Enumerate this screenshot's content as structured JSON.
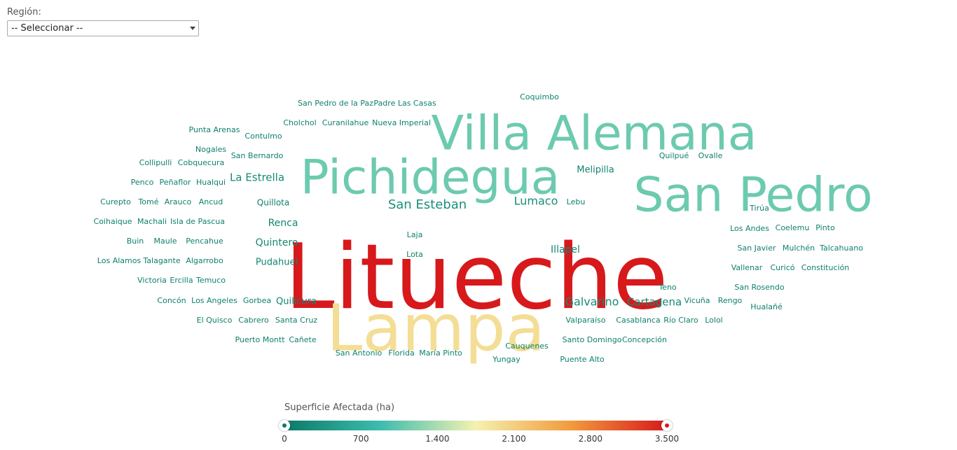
{
  "filter": {
    "label": "Región:",
    "selected": "-- Seleccionar --"
  },
  "legend": {
    "title": "Superficie Afectada (ha)",
    "min": 0,
    "max": 3500,
    "ticks": [
      "0",
      "700",
      "1.400",
      "2.100",
      "2.800",
      "3.500"
    ],
    "colors": [
      "#0a7a66",
      "#3dbcaf",
      "#f4f2b0",
      "#f29a3c",
      "#d7191c"
    ]
  },
  "chart_data": {
    "type": "wordcloud",
    "title": "",
    "value_label": "Superficie Afectada (ha)",
    "words": [
      {
        "text": "Litueche",
        "value": 3500
      },
      {
        "text": "Lampa",
        "value": 1950
      },
      {
        "text": "Pichidegua",
        "value": 1100
      },
      {
        "text": "San Pedro",
        "value": 1100
      },
      {
        "text": "Villa Alemana",
        "value": 1100
      },
      {
        "text": "San Esteban",
        "value": 280
      },
      {
        "text": "Lumaco",
        "value": 240
      },
      {
        "text": "Galvarino",
        "value": 220
      },
      {
        "text": "La Estrella",
        "value": 200
      },
      {
        "text": "Cartagena",
        "value": 180
      },
      {
        "text": "Quintero",
        "value": 170
      },
      {
        "text": "Renca",
        "value": 160
      },
      {
        "text": "Illapel",
        "value": 150
      },
      {
        "text": "Quilicura",
        "value": 140
      },
      {
        "text": "Pudahuel",
        "value": 140
      },
      {
        "text": "Melipilla",
        "value": 130
      },
      {
        "text": "Quillota",
        "value": 110
      },
      {
        "text": "Coquimbo",
        "value": 80
      },
      {
        "text": "San Pedro de la Paz",
        "value": 80
      },
      {
        "text": "Padre Las Casas",
        "value": 80
      },
      {
        "text": "Cholchol",
        "value": 80
      },
      {
        "text": "Curanilahue",
        "value": 80
      },
      {
        "text": "Nueva Imperial",
        "value": 80
      },
      {
        "text": "Punta Arenas",
        "value": 80
      },
      {
        "text": "Contulmo",
        "value": 80
      },
      {
        "text": "Nogales",
        "value": 80
      },
      {
        "text": "San Bernardo",
        "value": 80
      },
      {
        "text": "Collipulli",
        "value": 80
      },
      {
        "text": "Cobquecura",
        "value": 80
      },
      {
        "text": "Quilpué",
        "value": 80
      },
      {
        "text": "Ovalle",
        "value": 80
      },
      {
        "text": "Penco",
        "value": 80
      },
      {
        "text": "Peñaflor",
        "value": 80
      },
      {
        "text": "Hualqui",
        "value": 80
      },
      {
        "text": "Curepto",
        "value": 80
      },
      {
        "text": "Tomé",
        "value": 80
      },
      {
        "text": "Arauco",
        "value": 80
      },
      {
        "text": "Ancud",
        "value": 80
      },
      {
        "text": "Lebu",
        "value": 80
      },
      {
        "text": "Tirúa",
        "value": 80
      },
      {
        "text": "Coihaique",
        "value": 80
      },
      {
        "text": "Machali",
        "value": 80
      },
      {
        "text": "Isla de Pascua",
        "value": 80
      },
      {
        "text": "Los Andes",
        "value": 80
      },
      {
        "text": "Coelemu",
        "value": 80
      },
      {
        "text": "Pinto",
        "value": 80
      },
      {
        "text": "Laja",
        "value": 80
      },
      {
        "text": "Buin",
        "value": 80
      },
      {
        "text": "Maule",
        "value": 80
      },
      {
        "text": "Pencahue",
        "value": 80
      },
      {
        "text": "San Javier",
        "value": 80
      },
      {
        "text": "Mulchén",
        "value": 80
      },
      {
        "text": "Talcahuano",
        "value": 80
      },
      {
        "text": "Lota",
        "value": 80
      },
      {
        "text": "Los Alamos",
        "value": 80
      },
      {
        "text": "Talagante",
        "value": 80
      },
      {
        "text": "Algarrobo",
        "value": 80
      },
      {
        "text": "Vallenar",
        "value": 80
      },
      {
        "text": "Curicó",
        "value": 80
      },
      {
        "text": "Constitución",
        "value": 80
      },
      {
        "text": "Victoria",
        "value": 80
      },
      {
        "text": "Ercilla",
        "value": 80
      },
      {
        "text": "Temuco",
        "value": 80
      },
      {
        "text": "Teno",
        "value": 80
      },
      {
        "text": "San Rosendo",
        "value": 80
      },
      {
        "text": "Concón",
        "value": 80
      },
      {
        "text": "Los Angeles",
        "value": 80
      },
      {
        "text": "Gorbea",
        "value": 80
      },
      {
        "text": "Vicuña",
        "value": 80
      },
      {
        "text": "Rengo",
        "value": 80
      },
      {
        "text": "Hualañé",
        "value": 80
      },
      {
        "text": "El Quisco",
        "value": 80
      },
      {
        "text": "Cabrero",
        "value": 80
      },
      {
        "text": "Santa Cruz",
        "value": 80
      },
      {
        "text": "Valparaíso",
        "value": 80
      },
      {
        "text": "Casablanca",
        "value": 80
      },
      {
        "text": "Río Claro",
        "value": 80
      },
      {
        "text": "Lolol",
        "value": 80
      },
      {
        "text": "Puerto Montt",
        "value": 80
      },
      {
        "text": "Cañete",
        "value": 80
      },
      {
        "text": "Cauquenes",
        "value": 80
      },
      {
        "text": "Santo Domingo",
        "value": 80
      },
      {
        "text": "Concepción",
        "value": 80
      },
      {
        "text": "San Antonio",
        "value": 80
      },
      {
        "text": "Florida",
        "value": 80
      },
      {
        "text": "María Pinto",
        "value": 80
      },
      {
        "text": "Yungay",
        "value": 80
      },
      {
        "text": "Puente Alto",
        "value": 80
      }
    ]
  }
}
